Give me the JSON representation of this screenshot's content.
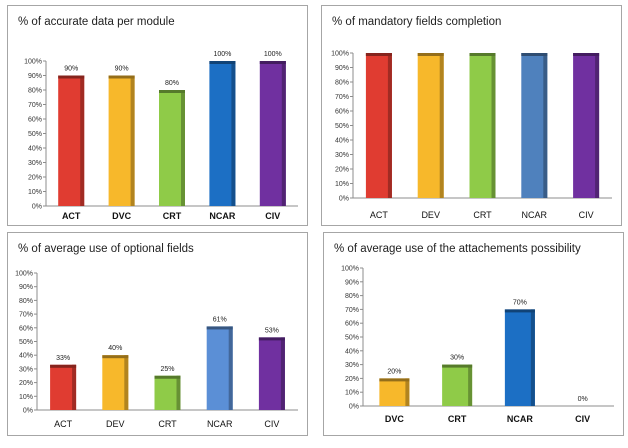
{
  "chart_data": [
    {
      "type": "bar",
      "title": "% of accurate data per module",
      "categories": [
        "ACT",
        "DVC",
        "CRT",
        "NCAR",
        "CIV"
      ],
      "values": [
        90,
        90,
        80,
        100,
        100
      ],
      "data_labels": [
        "90%",
        "90%",
        "80%",
        "100%",
        "100%"
      ],
      "colors": [
        "#e03c31",
        "#f7b82b",
        "#8fcb48",
        "#1c6fc4",
        "#7030a0"
      ],
      "ylim": [
        0,
        100
      ],
      "yticks": [
        "0%",
        "10%",
        "20%",
        "30%",
        "40%",
        "50%",
        "60%",
        "70%",
        "80%",
        "90%",
        "100%"
      ],
      "bold_categories": true,
      "grid": false
    },
    {
      "type": "bar",
      "title": "% of mandatory fields completion",
      "categories": [
        "ACT",
        "DEV",
        "CRT",
        "NCAR",
        "CIV"
      ],
      "values": [
        100,
        100,
        100,
        100,
        100
      ],
      "data_labels": [],
      "colors": [
        "#e03c31",
        "#f7b82b",
        "#8fcb48",
        "#4f81bd",
        "#7030a0"
      ],
      "ylim": [
        0,
        100
      ],
      "yticks": [
        "0%",
        "10%",
        "20%",
        "30%",
        "40%",
        "50%",
        "60%",
        "70%",
        "80%",
        "90%",
        "100%"
      ],
      "bold_categories": false,
      "grid": false
    },
    {
      "type": "bar",
      "title": "% of average use of optional fields",
      "categories": [
        "ACT",
        "DEV",
        "CRT",
        "NCAR",
        "CIV"
      ],
      "values": [
        33,
        40,
        25,
        61,
        53
      ],
      "data_labels": [
        "33%",
        "40%",
        "25%",
        "61%",
        "53%"
      ],
      "colors": [
        "#e03c31",
        "#f7b82b",
        "#8fcb48",
        "#5b8fd6",
        "#7030a0"
      ],
      "ylim": [
        0,
        100
      ],
      "yticks": [
        "0%",
        "10%",
        "20%",
        "30%",
        "40%",
        "50%",
        "60%",
        "70%",
        "80%",
        "90%",
        "100%"
      ],
      "bold_categories": false,
      "grid": false
    },
    {
      "type": "bar",
      "title": "% of average use of the attachements possibility",
      "categories": [
        "DVC",
        "CRT",
        "NCAR",
        "CIV"
      ],
      "values": [
        20,
        30,
        70,
        0
      ],
      "data_labels": [
        "20%",
        "30%",
        "70%",
        "0%"
      ],
      "colors": [
        "#f7b82b",
        "#8fcb48",
        "#1c6fc4",
        "#7030a0"
      ],
      "ylim": [
        0,
        100
      ],
      "yticks": [
        "0%",
        "10%",
        "20%",
        "30%",
        "40%",
        "50%",
        "60%",
        "70%",
        "80%",
        "90%",
        "100%"
      ],
      "bold_categories": true,
      "grid": false
    }
  ]
}
